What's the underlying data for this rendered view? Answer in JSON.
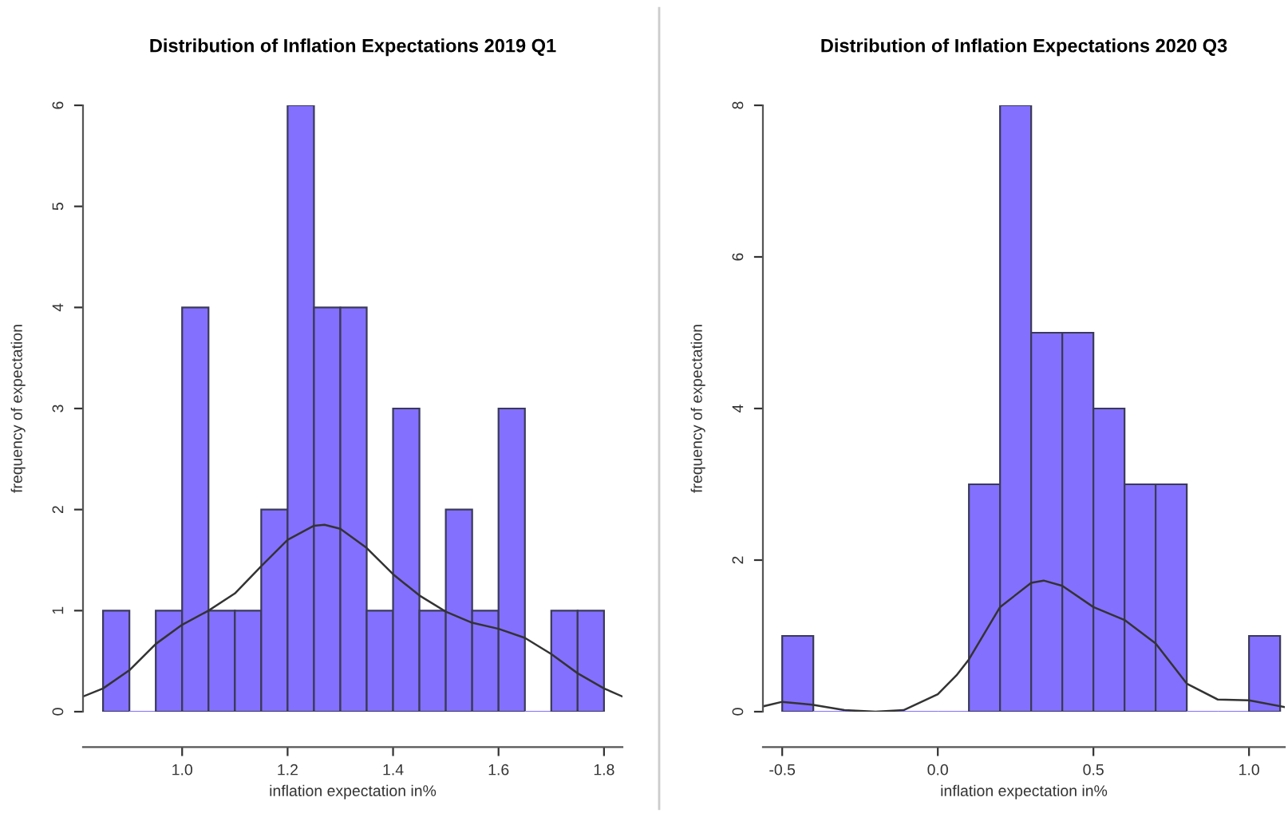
{
  "chart_data": [
    {
      "type": "histogram",
      "title": "Distribution of Inflation Expectations 2019 Q1",
      "xlabel": "inflation expectation in%",
      "ylabel": "frequency of expectation",
      "xlim": [
        0.812,
        1.835
      ],
      "ylim": [
        0,
        6
      ],
      "xticks": [
        {
          "value": 1.0,
          "label": "1.0"
        },
        {
          "value": 1.2,
          "label": "1.2"
        },
        {
          "value": 1.4,
          "label": "1.4"
        },
        {
          "value": 1.6,
          "label": "1.6"
        },
        {
          "value": 1.8,
          "label": "1.8"
        }
      ],
      "yticks": [
        0,
        1,
        2,
        3,
        4,
        5,
        6
      ],
      "grid": false,
      "legend": false,
      "series": [
        {
          "type": "histogram",
          "color": "#8470ff",
          "bins": [
            0.85,
            0.9,
            0.95,
            1.0,
            1.05,
            1.1,
            1.15,
            1.2,
            1.25,
            1.3,
            1.35,
            1.4,
            1.45,
            1.5,
            1.55,
            1.6,
            1.65,
            1.7,
            1.75,
            1.8
          ],
          "values": [
            1,
            0,
            1,
            4,
            1,
            1,
            2,
            6,
            4,
            4,
            1,
            3,
            1,
            2,
            1,
            3,
            0,
            1,
            1
          ]
        },
        {
          "type": "line",
          "color": "#333333",
          "x": [
            0.812,
            0.85,
            0.9,
            0.95,
            1.0,
            1.05,
            1.1,
            1.15,
            1.2,
            1.25,
            1.27,
            1.3,
            1.35,
            1.4,
            1.45,
            1.5,
            1.55,
            1.6,
            1.65,
            1.7,
            1.75,
            1.8,
            1.835
          ],
          "values": [
            0.15,
            0.23,
            0.41,
            0.67,
            0.86,
            1.0,
            1.17,
            1.44,
            1.7,
            1.84,
            1.85,
            1.81,
            1.62,
            1.36,
            1.15,
            0.99,
            0.88,
            0.82,
            0.73,
            0.57,
            0.38,
            0.23,
            0.15
          ]
        }
      ]
    },
    {
      "type": "histogram",
      "title": "Distribution of Inflation Expectations 2020 Q3",
      "xlabel": "inflation expectation in%",
      "ylabel": "frequency of expectation",
      "xlim": [
        -0.562,
        1.115
      ],
      "ylim": [
        0,
        8
      ],
      "xticks": [
        {
          "value": -0.5,
          "label": "-0.5"
        },
        {
          "value": 0.0,
          "label": "0.0"
        },
        {
          "value": 0.5,
          "label": "0.5"
        },
        {
          "value": 1.0,
          "label": "1.0"
        }
      ],
      "yticks": [
        0,
        2,
        4,
        6,
        8
      ],
      "grid": false,
      "legend": false,
      "series": [
        {
          "type": "histogram",
          "color": "#8470ff",
          "bins": [
            -0.5,
            -0.4,
            -0.3,
            -0.2,
            -0.1,
            0.0,
            0.1,
            0.2,
            0.3,
            0.4,
            0.5,
            0.6,
            0.7,
            0.8,
            0.9,
            1.0,
            1.1
          ],
          "values": [
            1,
            0,
            0,
            0,
            0,
            0,
            3,
            8,
            5,
            5,
            4,
            3,
            3,
            0,
            0,
            1
          ]
        },
        {
          "type": "line",
          "color": "#333333",
          "x": [
            -0.562,
            -0.5,
            -0.4,
            -0.3,
            -0.2,
            -0.11,
            0.0,
            0.06,
            0.1,
            0.2,
            0.3,
            0.34,
            0.4,
            0.5,
            0.6,
            0.7,
            0.8,
            0.9,
            1.0,
            1.115
          ],
          "values": [
            0.07,
            0.13,
            0.09,
            0.02,
            0.0,
            0.02,
            0.23,
            0.48,
            0.69,
            1.38,
            1.7,
            1.73,
            1.66,
            1.38,
            1.21,
            0.9,
            0.37,
            0.16,
            0.15,
            0.06
          ]
        }
      ]
    }
  ]
}
